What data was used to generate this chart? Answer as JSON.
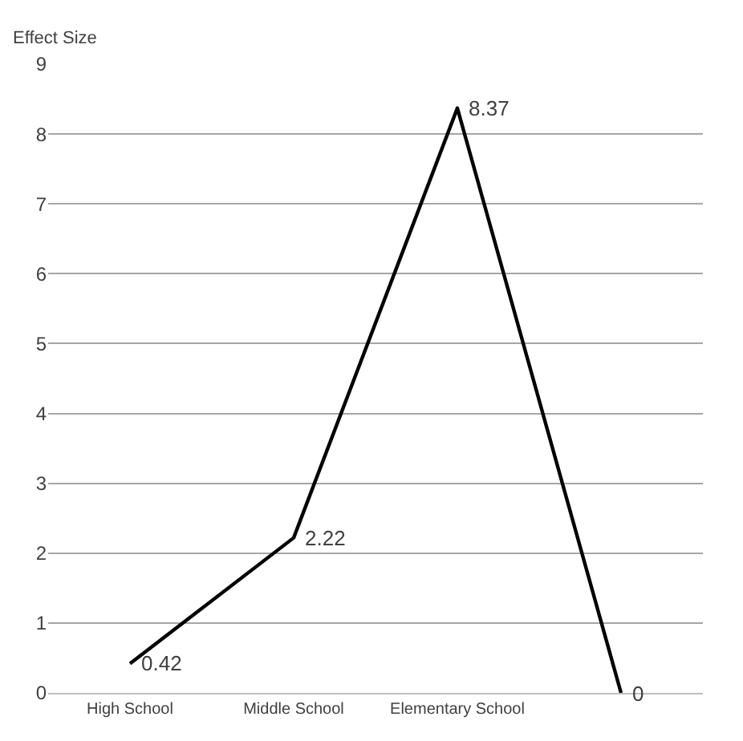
{
  "chart_data": {
    "type": "line",
    "ylabel": "Effect Size",
    "categories": [
      "High School",
      "Middle School",
      "Elementary School",
      null
    ],
    "series": [
      {
        "color": "#000000",
        "values": [
          0.42,
          2.22,
          8.37,
          0
        ]
      }
    ],
    "ylim": [
      0,
      9
    ],
    "yticks": [
      0,
      1,
      2,
      3,
      4,
      5,
      6,
      7,
      8,
      9
    ],
    "grid": "y",
    "legend": false,
    "data_labels": true,
    "marker": "none",
    "line_style": "solid"
  }
}
